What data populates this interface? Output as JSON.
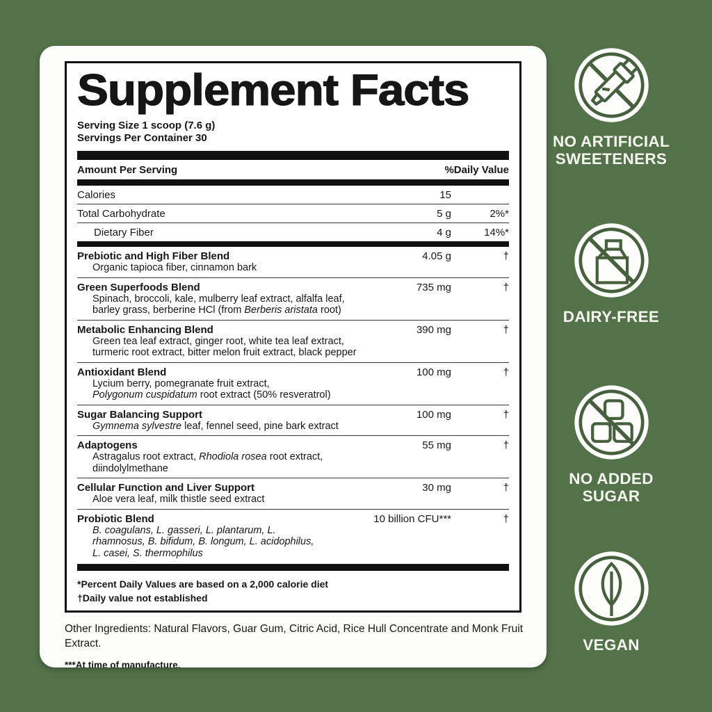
{
  "colors": {
    "background": "#537249",
    "card": "#fdfdfb",
    "ink": "#161616",
    "badge_green": "#46603d",
    "badge_text": "#f5f6f0"
  },
  "label": {
    "title": "Supplement Facts",
    "serving_size": "Serving Size 1 scoop (7.6 g)",
    "servings_per_container": "Servings Per Container 30",
    "columns": {
      "amount": "Amount Per Serving",
      "daily_value": "%Daily Value"
    },
    "nutrients": [
      {
        "name": "Calories",
        "amount": "15",
        "dv": "",
        "indent": false
      },
      {
        "name": "Total Carbohydrate",
        "amount": "5 g",
        "dv": "2%*",
        "indent": false
      },
      {
        "name": "Dietary Fiber",
        "amount": "4 g",
        "dv": "14%*",
        "indent": true
      }
    ],
    "blends": [
      {
        "name": "Prebiotic and High Fiber Blend",
        "amount": "4.05 g",
        "dv": "†",
        "lines": [
          [
            {
              "t": "Organic tapioca fiber, cinnamon bark"
            }
          ]
        ]
      },
      {
        "name": "Green Superfoods Blend",
        "amount": "735 mg",
        "dv": "†",
        "lines": [
          [
            {
              "t": "Spinach, broccoli, kale, mulberry leaf extract, alfalfa leaf,"
            }
          ],
          [
            {
              "t": "barley grass, berberine HCl (from "
            },
            {
              "t": "Berberis aristata",
              "i": true
            },
            {
              "t": " root)"
            }
          ]
        ]
      },
      {
        "name": "Metabolic Enhancing Blend",
        "amount": "390 mg",
        "dv": "†",
        "lines": [
          [
            {
              "t": "Green tea leaf extract, ginger root, white tea leaf extract,"
            }
          ],
          [
            {
              "t": "turmeric root extract, bitter melon fruit extract, black pepper"
            }
          ]
        ]
      },
      {
        "name": "Antioxidant Blend",
        "amount": "100 mg",
        "dv": "†",
        "lines": [
          [
            {
              "t": "Lycium berry, pomegranate fruit extract,"
            }
          ],
          [
            {
              "t": "Polygonum cuspidatum",
              "i": true
            },
            {
              "t": " root extract (50% resveratrol)"
            }
          ]
        ]
      },
      {
        "name": "Sugar Balancing Support",
        "amount": "100 mg",
        "dv": "†",
        "lines": [
          [
            {
              "t": "Gymnema sylvestre",
              "i": true
            },
            {
              "t": " leaf, fennel seed, pine bark extract"
            }
          ]
        ]
      },
      {
        "name": "Adaptogens",
        "amount": "55 mg",
        "dv": "†",
        "lines": [
          [
            {
              "t": "Astragalus root extract, "
            },
            {
              "t": "Rhodiola rosea",
              "i": true
            },
            {
              "t": " root extract,"
            }
          ],
          [
            {
              "t": "diindolylmethane"
            }
          ]
        ]
      },
      {
        "name": "Cellular Function and Liver Support",
        "amount": "30 mg",
        "dv": "†",
        "lines": [
          [
            {
              "t": "Aloe vera leaf, milk thistle seed extract"
            }
          ]
        ]
      },
      {
        "name": "Probiotic Blend",
        "amount": "10 billion CFU***",
        "dv": "†",
        "lines": [
          [
            {
              "t": "B. coagulans, L. gasseri, L. plantarum, L.",
              "i": true
            }
          ],
          [
            {
              "t": "rhamnosus, B. bifidum, B. longum, L. acidophilus,",
              "i": true
            }
          ],
          [
            {
              "t": "L. casei, S. thermophilus",
              "i": true
            }
          ]
        ]
      }
    ],
    "footnotes": [
      "*Percent Daily Values are based on a 2,000 calorie diet",
      "†Daily value not established"
    ],
    "other_ingredients": "Other Ingredients: Natural Flavors, Guar Gum, Citric Acid, Rice Hull Concentrate and Monk Fruit Extract.",
    "manufacture_note": "***At time of manufacture."
  },
  "badges": [
    {
      "id": "no-artificial-sweeteners",
      "lines": [
        "NO ARTIFICIAL",
        "SWEETENERS"
      ]
    },
    {
      "id": "dairy-free",
      "lines": [
        "DAIRY-FREE"
      ]
    },
    {
      "id": "no-added-sugar",
      "lines": [
        "NO ADDED",
        "SUGAR"
      ]
    },
    {
      "id": "vegan",
      "lines": [
        "VEGAN"
      ]
    }
  ]
}
